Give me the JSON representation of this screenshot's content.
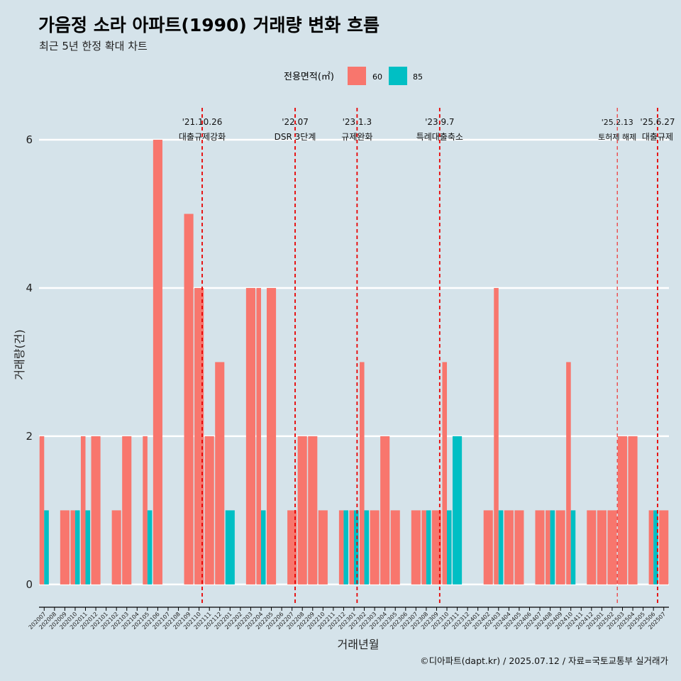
{
  "chart_data": {
    "type": "bar",
    "title": "가음정 소라 아파트(1990) 거래량 변화 흐름",
    "subtitle": "최근 5년 한정 확대 차트",
    "xlabel": "거래년월",
    "ylabel": "거래량(건)",
    "caption": "©디아파트(dapt.kr) / 2025.07.12 / 자료=국토교통부 실거래가",
    "ylim": [
      -0.25,
      6.45
    ],
    "yticks": [
      0,
      2,
      4,
      6
    ],
    "grid": "horizontal",
    "legend": {
      "title": "전용면적(㎡)",
      "position": "top",
      "items": [
        {
          "label": "60",
          "color": "#F8766D"
        },
        {
          "label": "85",
          "color": "#00BFC4"
        }
      ]
    },
    "categories": [
      "202007",
      "202008",
      "202009",
      "202010",
      "202011",
      "202012",
      "202101",
      "202102",
      "202103",
      "202104",
      "202105",
      "202106",
      "202107",
      "202108",
      "202109",
      "202110",
      "202111",
      "202112",
      "202201",
      "202202",
      "202203",
      "202204",
      "202205",
      "202206",
      "202207",
      "202208",
      "202209",
      "202210",
      "202211",
      "202212",
      "202301",
      "202302",
      "202303",
      "202304",
      "202305",
      "202306",
      "202307",
      "202308",
      "202309",
      "202310",
      "202311",
      "202312",
      "202401",
      "202402",
      "202403",
      "202404",
      "202405",
      "202406",
      "202407",
      "202408",
      "202409",
      "202410",
      "202411",
      "202412",
      "202501",
      "202502",
      "202503",
      "202504",
      "202505",
      "202506",
      "202507"
    ],
    "series": [
      {
        "name": "60",
        "color": "#F8766D",
        "values": [
          2,
          0,
          1,
          1,
          2,
          2,
          0,
          1,
          2,
          0,
          2,
          6,
          0,
          0,
          5,
          4,
          2,
          3,
          0,
          0,
          4,
          4,
          4,
          0,
          1,
          2,
          2,
          1,
          0,
          1,
          1,
          3,
          1,
          2,
          1,
          0,
          1,
          1,
          1,
          3,
          0,
          0,
          0,
          1,
          4,
          1,
          1,
          0,
          1,
          1,
          1,
          3,
          0,
          1,
          1,
          1,
          2,
          2,
          0,
          1,
          1
        ]
      },
      {
        "name": "85",
        "color": "#00BFC4",
        "values": [
          1,
          0,
          0,
          1,
          1,
          0,
          0,
          0,
          0,
          0,
          1,
          0,
          0,
          0,
          0,
          0,
          0,
          0,
          1,
          0,
          0,
          1,
          0,
          0,
          0,
          0,
          0,
          0,
          0,
          1,
          1,
          1,
          0,
          0,
          0,
          0,
          0,
          1,
          0,
          1,
          2,
          0,
          0,
          0,
          1,
          0,
          0,
          0,
          0,
          1,
          0,
          1,
          0,
          0,
          0,
          0,
          0,
          0,
          0,
          1,
          0
        ]
      }
    ],
    "events": [
      {
        "date": "'21.10.26",
        "label": "대출규제강화",
        "x": 15.3,
        "style": "bold"
      },
      {
        "date": "'22.07",
        "label": "DSR 3단계",
        "x": 24.3,
        "style": "bold"
      },
      {
        "date": "'23.1.3",
        "label": "규제완화",
        "x": 30.3,
        "style": "bold"
      },
      {
        "date": "'23.9.7",
        "label": "특례대출축소",
        "x": 38.3,
        "style": "bold"
      },
      {
        "date": "'25.2.13",
        "label": "토허제 해제",
        "x": 55.5,
        "style": "thin"
      },
      {
        "date": "'25.6.27",
        "label": "대출규제",
        "x": 59.4,
        "style": "bold"
      }
    ]
  }
}
